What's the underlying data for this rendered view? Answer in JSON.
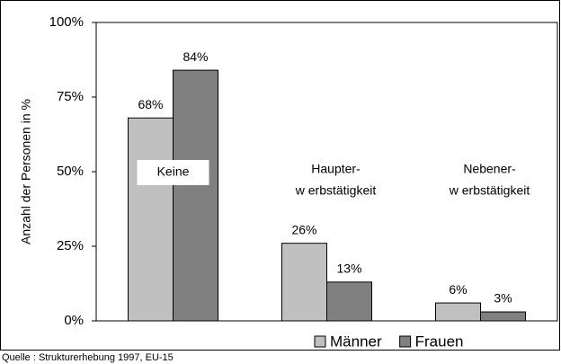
{
  "chart_data": {
    "type": "bar",
    "y_label": "Anzahl der Personen in %",
    "categories": [
      [
        "Keine"
      ],
      [
        "Haupter-",
        "w erbstätigkeit"
      ],
      [
        "Nebener-",
        "w erbstätigkeit"
      ]
    ],
    "series": [
      {
        "name": "Männer",
        "color": "#c0c0c0",
        "values": [
          68,
          26,
          6
        ],
        "value_labels": [
          "68%",
          "26%",
          "6%"
        ]
      },
      {
        "name": "Frauen",
        "color": "#808080",
        "values": [
          84,
          13,
          3
        ],
        "value_labels": [
          "84%",
          "13%",
          "3%"
        ]
      }
    ],
    "ylim": [
      0,
      100
    ],
    "yticks": [
      {
        "value": 0,
        "label": "0%"
      },
      {
        "value": 25,
        "label": "25%"
      },
      {
        "value": 50,
        "label": "50%"
      },
      {
        "value": 75,
        "label": "75%"
      },
      {
        "value": 100,
        "label": "100%"
      }
    ],
    "grid": false,
    "legend": "bottom",
    "source": "Quelle : Strukturerhebung 1997, EU-15"
  }
}
